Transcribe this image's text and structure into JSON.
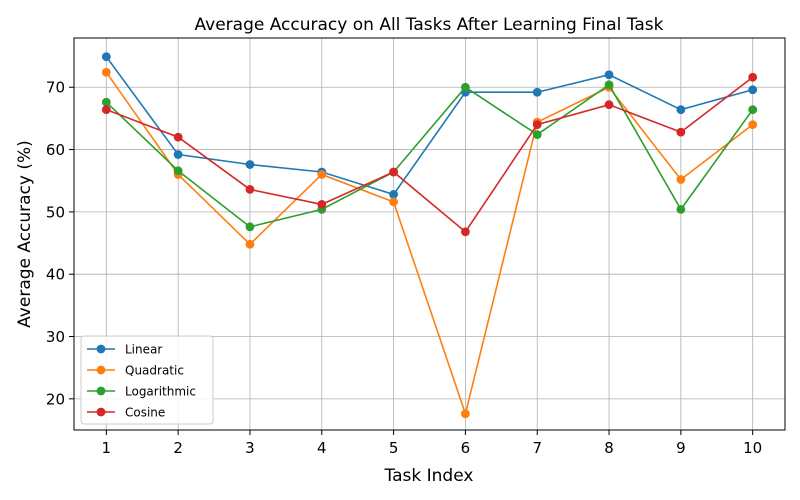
{
  "chart_data": {
    "type": "line",
    "title": "Average Accuracy on All Tasks After Learning Final Task",
    "xlabel": "Task Index",
    "ylabel": "Average Accuracy (%)",
    "x": [
      1,
      2,
      3,
      4,
      5,
      6,
      7,
      8,
      9,
      10
    ],
    "xlim": [
      0.55,
      10.45
    ],
    "ylim": [
      15,
      77.9
    ],
    "yticks": [
      20,
      30,
      40,
      50,
      60,
      70
    ],
    "grid": true,
    "legend_position": "lower-left",
    "series": [
      {
        "name": "Linear",
        "color": "#1f77b4",
        "values": [
          74.9,
          59.2,
          57.6,
          56.4,
          52.8,
          69.2,
          69.2,
          72.0,
          66.4,
          69.6
        ]
      },
      {
        "name": "Quadratic",
        "color": "#ff7f0e",
        "values": [
          72.4,
          56.0,
          44.8,
          56.0,
          51.6,
          17.6,
          64.4,
          70.0,
          55.2,
          64.0
        ]
      },
      {
        "name": "Logarithmic",
        "color": "#2ca02c",
        "values": [
          67.6,
          56.6,
          47.6,
          50.4,
          56.4,
          70.0,
          62.4,
          70.4,
          50.4,
          66.4
        ]
      },
      {
        "name": "Cosine",
        "color": "#d62728",
        "values": [
          66.4,
          62.0,
          53.6,
          51.2,
          56.4,
          46.8,
          64.0,
          67.2,
          62.8,
          71.6
        ]
      }
    ]
  }
}
